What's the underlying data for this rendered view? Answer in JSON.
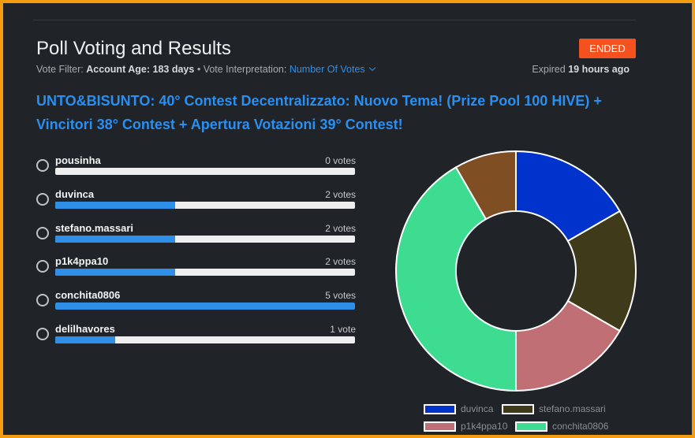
{
  "header": {
    "title": "Poll Voting and Results",
    "status_badge": "ENDED",
    "vote_filter_label": "Vote Filter:",
    "vote_filter_value": "Account Age: 183 days",
    "separator": "•",
    "interpretation_label": "Vote Interpretation:",
    "interpretation_value": "Number Of Votes",
    "expired_label": "Expired",
    "expired_value": "19 hours ago"
  },
  "post_title": "UNTO&BISUNTO: 40° Contest Decentralizzato: Nuovo Tema! (Prize Pool 100 HIVE) + Vincitori 38° Contest + Apertura Votazioni 39° Contest!",
  "options": [
    {
      "name": "pousinha",
      "votes_label": "0 votes",
      "votes": 0
    },
    {
      "name": "duvinca",
      "votes_label": "2 votes",
      "votes": 2
    },
    {
      "name": "stefano.massari",
      "votes_label": "2 votes",
      "votes": 2
    },
    {
      "name": "p1k4ppa10",
      "votes_label": "2 votes",
      "votes": 2
    },
    {
      "name": "conchita0806",
      "votes_label": "5 votes",
      "votes": 5
    },
    {
      "name": "delilhavores",
      "votes_label": "1 vote",
      "votes": 1
    }
  ],
  "chart_data": {
    "type": "pie",
    "style": "donut",
    "categories": [
      "duvinca",
      "stefano.massari",
      "p1k4ppa10",
      "conchita0806",
      "delilhavores"
    ],
    "values": [
      2,
      2,
      2,
      5,
      1
    ],
    "colors": [
      "#0033cc",
      "#3e3a1a",
      "#c07074",
      "#3ddc91",
      "#7f4f23"
    ],
    "legend_entries": [
      "duvinca",
      "stefano.massari",
      "p1k4ppa10",
      "conchita0806"
    ],
    "legend_placement": "bottom"
  },
  "colors": {
    "accent": "#2f8fe8",
    "badge": "#f4511e",
    "frame": "#f39c12",
    "background": "#202327"
  }
}
